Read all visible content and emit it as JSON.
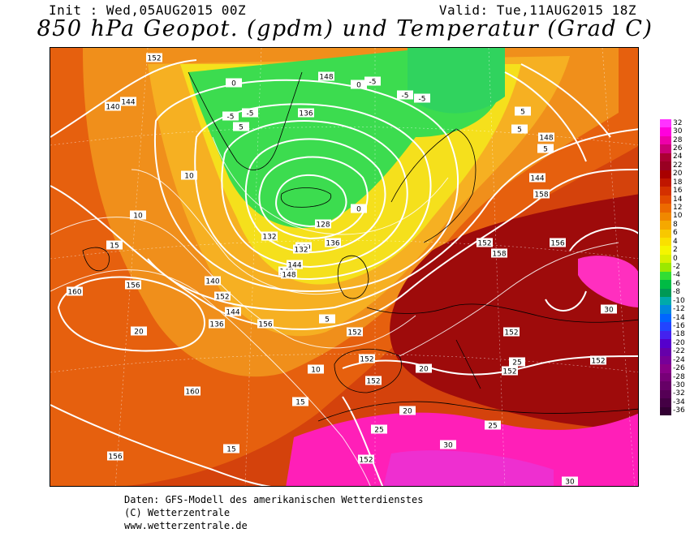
{
  "header": {
    "init": "Init : Wed,05AUG2015 00Z",
    "valid": "Valid: Tue,11AUG2015 18Z",
    "title": "850 hPa Geopot. (gpdm) und Temperatur (Grad C)"
  },
  "colorbar": {
    "labels": [
      "32",
      "30",
      "28",
      "26",
      "24",
      "22",
      "20",
      "18",
      "16",
      "14",
      "12",
      "10",
      "8",
      "6",
      "4",
      "2",
      "0",
      "-2",
      "-4",
      "-6",
      "-8",
      "-10",
      "-12",
      "-14",
      "-16",
      "-18",
      "-20",
      "-22",
      "-24",
      "-26",
      "-28",
      "-30",
      "-32",
      "-34",
      "-36"
    ],
    "colors": [
      "#ff33ff",
      "#ff00dd",
      "#ee00aa",
      "#cc0077",
      "#aa0033",
      "#990022",
      "#a80000",
      "#c01500",
      "#d43000",
      "#e24a00",
      "#ec6a00",
      "#f08800",
      "#f5a800",
      "#f8c800",
      "#fae000",
      "#f5f500",
      "#d8f000",
      "#9ce800",
      "#33dd33",
      "#00bb44",
      "#009955",
      "#00aaaa",
      "#0088dd",
      "#0066ff",
      "#2244ff",
      "#4422ee",
      "#5500cc",
      "#6600aa",
      "#770099",
      "#880088",
      "#770077",
      "#660066",
      "#550055",
      "#440044",
      "#330033"
    ]
  },
  "map": {
    "colors": {
      "warm_red": "#c92a07",
      "dark_red": "#9a0a0a",
      "orange": "#ee7a12",
      "light_orange": "#f6a51d",
      "yellow": "#f5e41a",
      "green": "#38dd52",
      "magenta": "#ff1fb8"
    },
    "geopotential_labels": [
      "152",
      "148",
      "144",
      "140",
      "136",
      "132",
      "128",
      "160",
      "156",
      "144",
      "140",
      "136",
      "148",
      "152",
      "156",
      "152",
      "152",
      "152",
      "152",
      "136",
      "140",
      "144",
      "148",
      "152",
      "156",
      "158",
      "160",
      "156",
      "152",
      "152",
      "152",
      "152",
      "158",
      "144",
      "148",
      "132"
    ],
    "temperature_labels": [
      "0",
      "5",
      "-5",
      "10",
      "15",
      "20",
      "25",
      "30",
      "-5",
      "-5",
      "-5",
      "5",
      "5",
      "0",
      "10",
      "15",
      "20",
      "25",
      "30",
      "5",
      "10",
      "15",
      "20",
      "25",
      "30",
      "-5",
      "5",
      "0"
    ]
  },
  "footer": {
    "line1": "Daten: GFS-Modell des amerikanischen Wetterdienstes",
    "line2": "(C) Wetterzentrale",
    "line3": "www.wetterzentrale.de"
  }
}
